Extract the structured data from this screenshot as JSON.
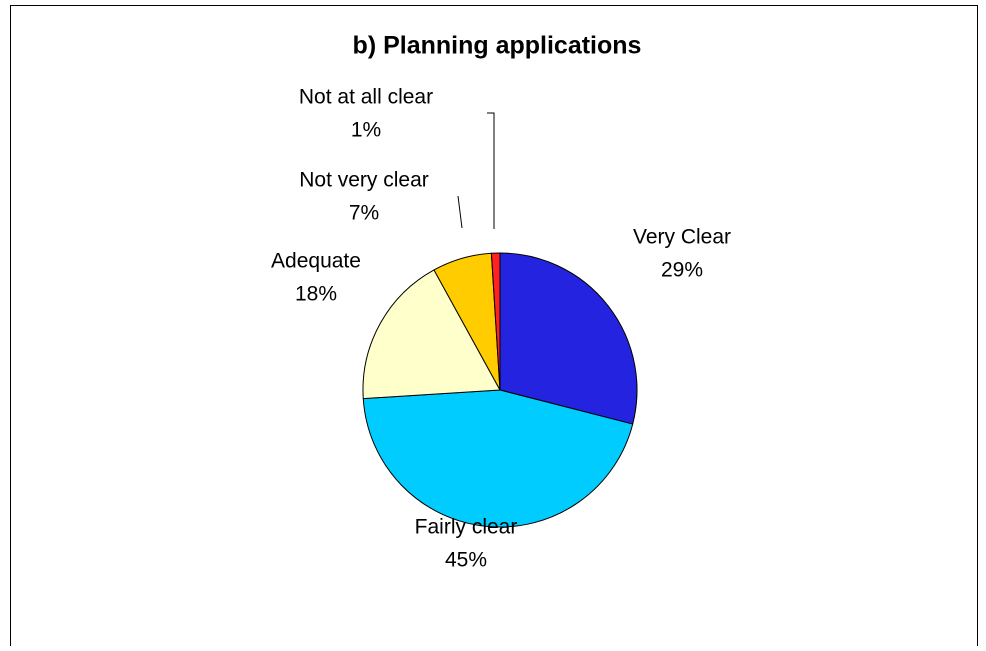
{
  "chart_data": {
    "type": "pie",
    "title": "b) Planning applications",
    "categories": [
      "Very Clear",
      "Fairly clear",
      "Adequate",
      "Not very clear",
      "Not at all clear"
    ],
    "values": [
      29,
      45,
      18,
      7,
      1
    ],
    "value_labels": [
      "29%",
      "45%",
      "18%",
      "7%",
      "1%"
    ],
    "colors": [
      "#2424e0",
      "#00ccff",
      "#ffffcc",
      "#ffcc00",
      "#ff2222"
    ]
  }
}
